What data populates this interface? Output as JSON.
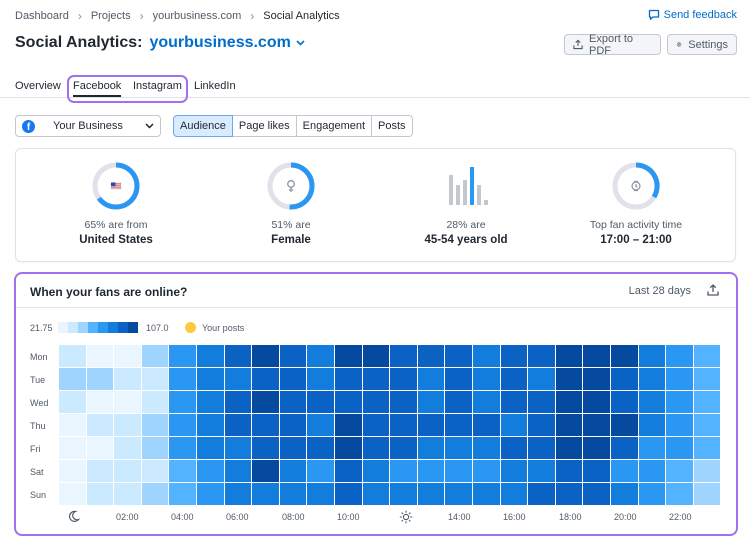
{
  "breadcrumbs": [
    "Dashboard",
    "Projects",
    "yourbusiness.com",
    "Social Analytics"
  ],
  "feedback_label": "Send feedback",
  "header": {
    "title": "Social Analytics:",
    "domain": "yourbusiness.com"
  },
  "toolbar": {
    "export_label": "Export to PDF",
    "settings_label": "Settings"
  },
  "tabs": [
    "Overview",
    "Facebook",
    "Instagram",
    "LinkedIn"
  ],
  "active_tab": "Facebook",
  "account": {
    "label": "Your Business"
  },
  "segments": [
    "Audience",
    "Page likes",
    "Engagement",
    "Posts"
  ],
  "active_segment": "Audience",
  "stats": [
    {
      "caption": "65% are from",
      "value": "United States",
      "percent": 65
    },
    {
      "caption": "51% are",
      "value": "Female",
      "percent": 51
    },
    {
      "caption": "28% are",
      "value": "45-54 years old",
      "percent": 28
    },
    {
      "caption": "Top fan activity time",
      "value": "17:00 – 21:00"
    }
  ],
  "heatmap": {
    "title": "When your fans are online?",
    "period": "Last 28 days",
    "legend_min": "21.75",
    "legend_max": "107.0",
    "legend_posts": "Your posts",
    "days": [
      "Mon",
      "Tue",
      "Wed",
      "Thu",
      "Fri",
      "Sat",
      "Sun"
    ],
    "x_labels": [
      "02:00",
      "04:00",
      "06:00",
      "08:00",
      "10:00",
      "14:00",
      "16:00",
      "18:00",
      "20:00",
      "22:00"
    ],
    "colors": [
      "#eaf6ff",
      "#cbe9ff",
      "#9fd4ff",
      "#53b3ff",
      "#2a97f2",
      "#127ddc",
      "#0a62c4",
      "#054a9e"
    ]
  },
  "chart_data": {
    "type": "heatmap",
    "title": "When your fans are online?",
    "y": [
      "Mon",
      "Tue",
      "Wed",
      "Thu",
      "Fri",
      "Sat",
      "Sun"
    ],
    "x": [
      0,
      1,
      2,
      3,
      4,
      5,
      6,
      7,
      8,
      9,
      10,
      11,
      12,
      13,
      14,
      15,
      16,
      17,
      18,
      19,
      20,
      21,
      22,
      23
    ],
    "x_tick_labels": [
      "02:00",
      "04:00",
      "06:00",
      "08:00",
      "10:00",
      "14:00",
      "16:00",
      "18:00",
      "20:00",
      "22:00"
    ],
    "range": [
      21.75,
      107.0
    ],
    "values": [
      [
        1,
        0,
        0,
        2,
        4,
        5,
        6,
        7,
        6,
        5,
        7,
        7,
        6,
        6,
        6,
        5,
        6,
        6,
        7,
        7,
        7,
        5,
        4,
        3
      ],
      [
        2,
        2,
        1,
        1,
        4,
        5,
        5,
        6,
        6,
        5,
        6,
        6,
        6,
        5,
        6,
        5,
        6,
        5,
        7,
        7,
        6,
        5,
        4,
        3
      ],
      [
        1,
        0,
        0,
        1,
        4,
        5,
        6,
        7,
        6,
        6,
        6,
        6,
        6,
        5,
        6,
        5,
        6,
        6,
        7,
        7,
        6,
        5,
        4,
        3
      ],
      [
        0,
        1,
        1,
        2,
        4,
        5,
        6,
        6,
        6,
        5,
        7,
        6,
        6,
        6,
        6,
        6,
        5,
        6,
        7,
        7,
        7,
        5,
        4,
        3
      ],
      [
        0,
        0,
        1,
        2,
        4,
        5,
        5,
        6,
        6,
        6,
        7,
        6,
        6,
        5,
        5,
        5,
        6,
        6,
        7,
        7,
        6,
        4,
        4,
        3
      ],
      [
        0,
        1,
        1,
        1,
        3,
        4,
        5,
        7,
        5,
        4,
        6,
        5,
        4,
        4,
        4,
        4,
        5,
        5,
        6,
        6,
        4,
        4,
        3,
        2
      ],
      [
        0,
        1,
        1,
        2,
        3,
        4,
        5,
        5,
        5,
        5,
        6,
        5,
        5,
        5,
        5,
        5,
        5,
        6,
        6,
        6,
        5,
        4,
        3,
        2
      ]
    ]
  }
}
